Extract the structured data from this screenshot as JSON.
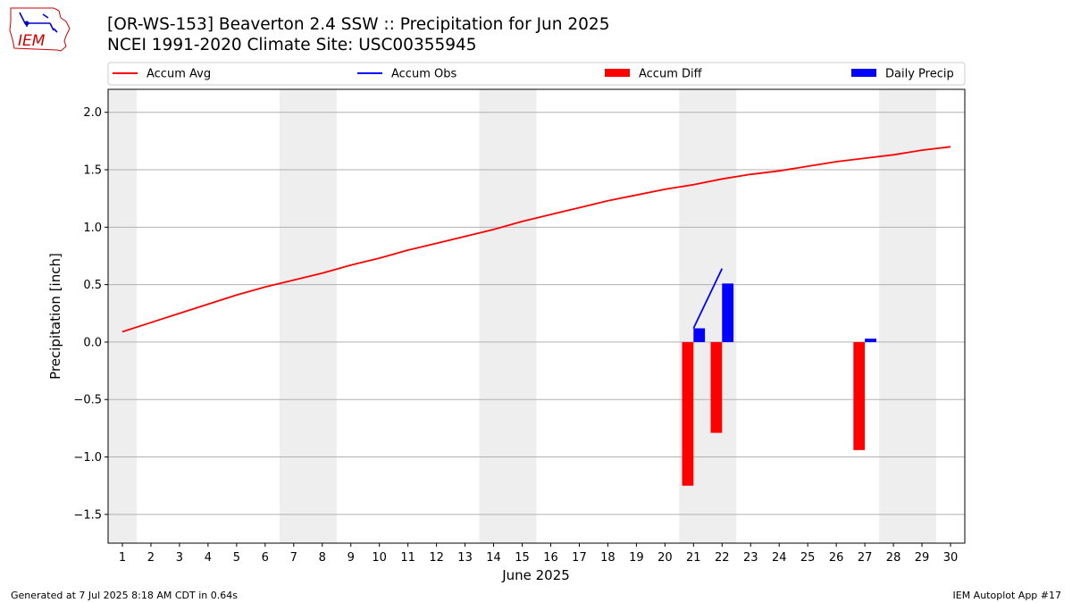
{
  "header": {
    "title_line1": "[OR-WS-153] Beaverton 2.4 SSW :: Precipitation for Jun 2025",
    "title_line2": "NCEI 1991-2020 Climate Site: USC00355945"
  },
  "logo": {
    "text": "IEM",
    "icon": "iowa-state-outline-icon",
    "accent": "#cc0000"
  },
  "footer": {
    "left": "Generated at 7 Jul 2025 8:18 AM CDT in 0.64s",
    "right": "IEM Autoplot App #17"
  },
  "chart_data": {
    "type": "bar",
    "xlabel": "June 2025",
    "ylabel": "Precipitation [inch]",
    "ylim": [
      -1.75,
      2.2
    ],
    "xlim": [
      0.5,
      30.5
    ],
    "yticks": [
      -1.5,
      -1.0,
      -0.5,
      0.0,
      0.5,
      1.0,
      1.5,
      2.0
    ],
    "ytick_labels": [
      "−1.5",
      "−1.0",
      "−0.5",
      "0.0",
      "0.5",
      "1.0",
      "1.5",
      "2.0"
    ],
    "x": [
      1,
      2,
      3,
      4,
      5,
      6,
      7,
      8,
      9,
      10,
      11,
      12,
      13,
      14,
      15,
      16,
      17,
      18,
      19,
      20,
      21,
      22,
      23,
      24,
      25,
      26,
      27,
      28,
      29,
      30
    ],
    "grid": "horizontal",
    "weekend_shading": [
      [
        0.5,
        1.5
      ],
      [
        6.5,
        8.5
      ],
      [
        13.5,
        15.5
      ],
      [
        20.5,
        22.5
      ],
      [
        27.5,
        29.5
      ]
    ],
    "legend": {
      "placement": "top, above plot",
      "entries": [
        "Accum Avg",
        "Accum Obs",
        "Accum Diff",
        "Daily Precip"
      ]
    },
    "series": [
      {
        "name": "Accum Avg",
        "kind": "line",
        "color": "#ff0000",
        "x": [
          1,
          2,
          3,
          4,
          5,
          6,
          7,
          8,
          9,
          10,
          11,
          12,
          13,
          14,
          15,
          16,
          17,
          18,
          19,
          20,
          21,
          22,
          23,
          24,
          25,
          26,
          27,
          28,
          29,
          30
        ],
        "values": [
          0.09,
          0.17,
          0.25,
          0.33,
          0.41,
          0.48,
          0.54,
          0.6,
          0.67,
          0.73,
          0.8,
          0.86,
          0.92,
          0.98,
          1.05,
          1.11,
          1.17,
          1.23,
          1.28,
          1.33,
          1.37,
          1.42,
          1.46,
          1.49,
          1.53,
          1.57,
          1.6,
          1.63,
          1.67,
          1.7
        ]
      },
      {
        "name": "Accum Obs",
        "kind": "line",
        "color": "#0000ff",
        "x": [
          21,
          22
        ],
        "values": [
          0.12,
          0.64
        ]
      },
      {
        "name": "Accum Diff",
        "kind": "bar",
        "color": "#ff0000",
        "x": [
          21,
          22,
          27
        ],
        "values": [
          -1.25,
          -0.79,
          -0.94
        ]
      },
      {
        "name": "Daily Precip",
        "kind": "bar",
        "color": "#0000ff",
        "x": [
          21,
          22,
          27
        ],
        "values": [
          0.12,
          0.51,
          0.03
        ]
      }
    ]
  }
}
